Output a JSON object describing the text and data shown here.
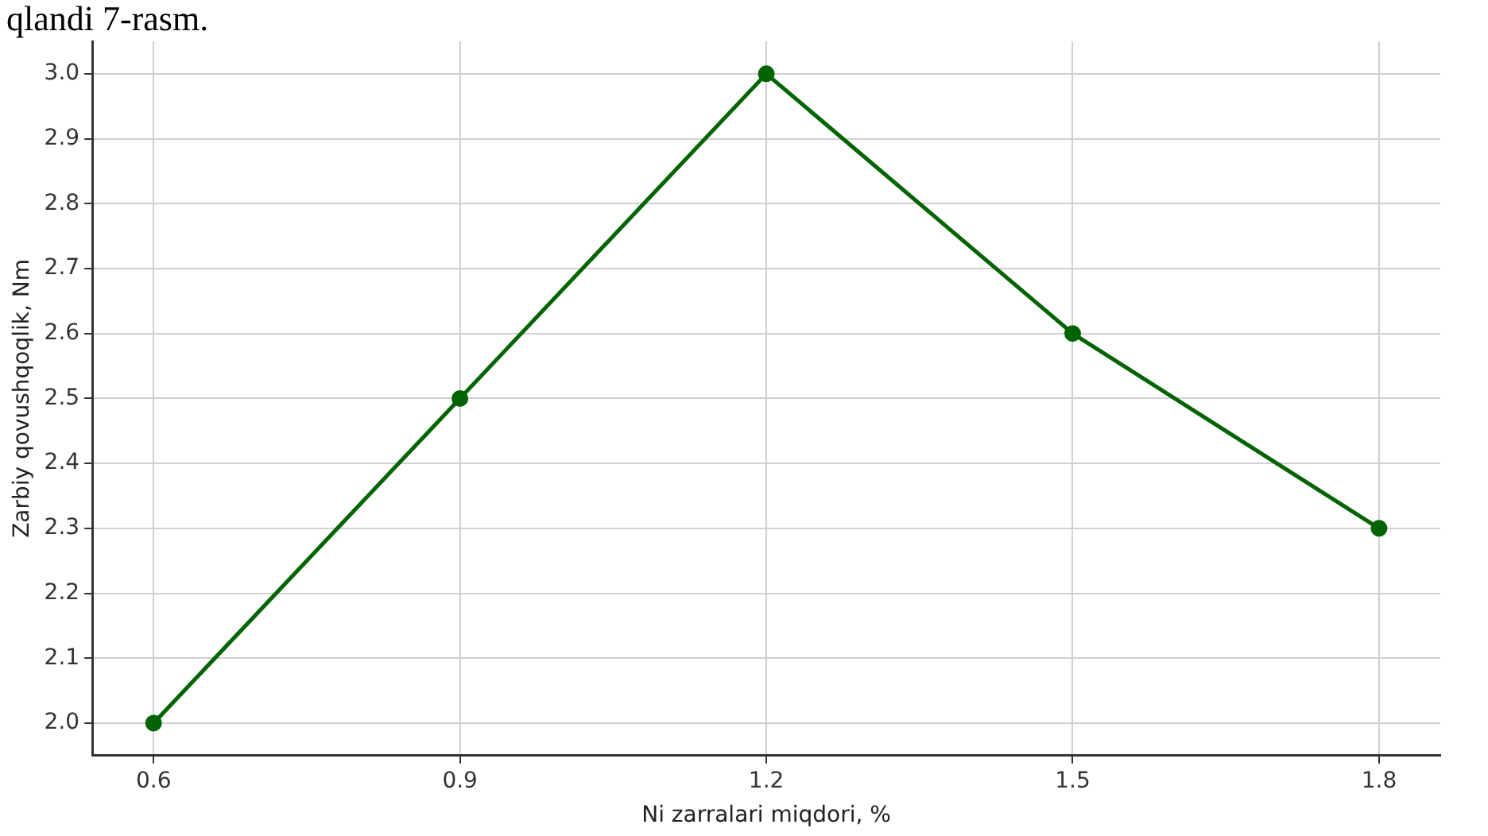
{
  "chart_data": {
    "type": "line",
    "xlabel": "Ni zarralari miqdori, %",
    "ylabel": "Zarbiy qovushqoqlik, Nm",
    "annotations": [
      "qlandi 7-rasm."
    ],
    "x": [
      0.6,
      0.9,
      1.2,
      1.5,
      1.8
    ],
    "series": [
      {
        "color": "#006400",
        "values": [
          2.0,
          2.5,
          3.0,
          2.6,
          2.3
        ]
      }
    ],
    "xlim": [
      0.54,
      1.86
    ],
    "xticks": [
      0.6,
      0.9,
      1.2,
      1.5,
      1.8
    ],
    "ylim": [
      1.95,
      3.05
    ],
    "yticks": [
      {
        "value": 2,
        "label": "2.0"
      },
      2.1,
      2.2,
      2.3,
      2.4,
      2.5,
      2.6,
      2.7,
      2.8,
      2.9,
      {
        "value": 3,
        "label": "3.0"
      }
    ],
    "grid": true,
    "marker": "circle",
    "line_style": "solid",
    "legend": false
  }
}
